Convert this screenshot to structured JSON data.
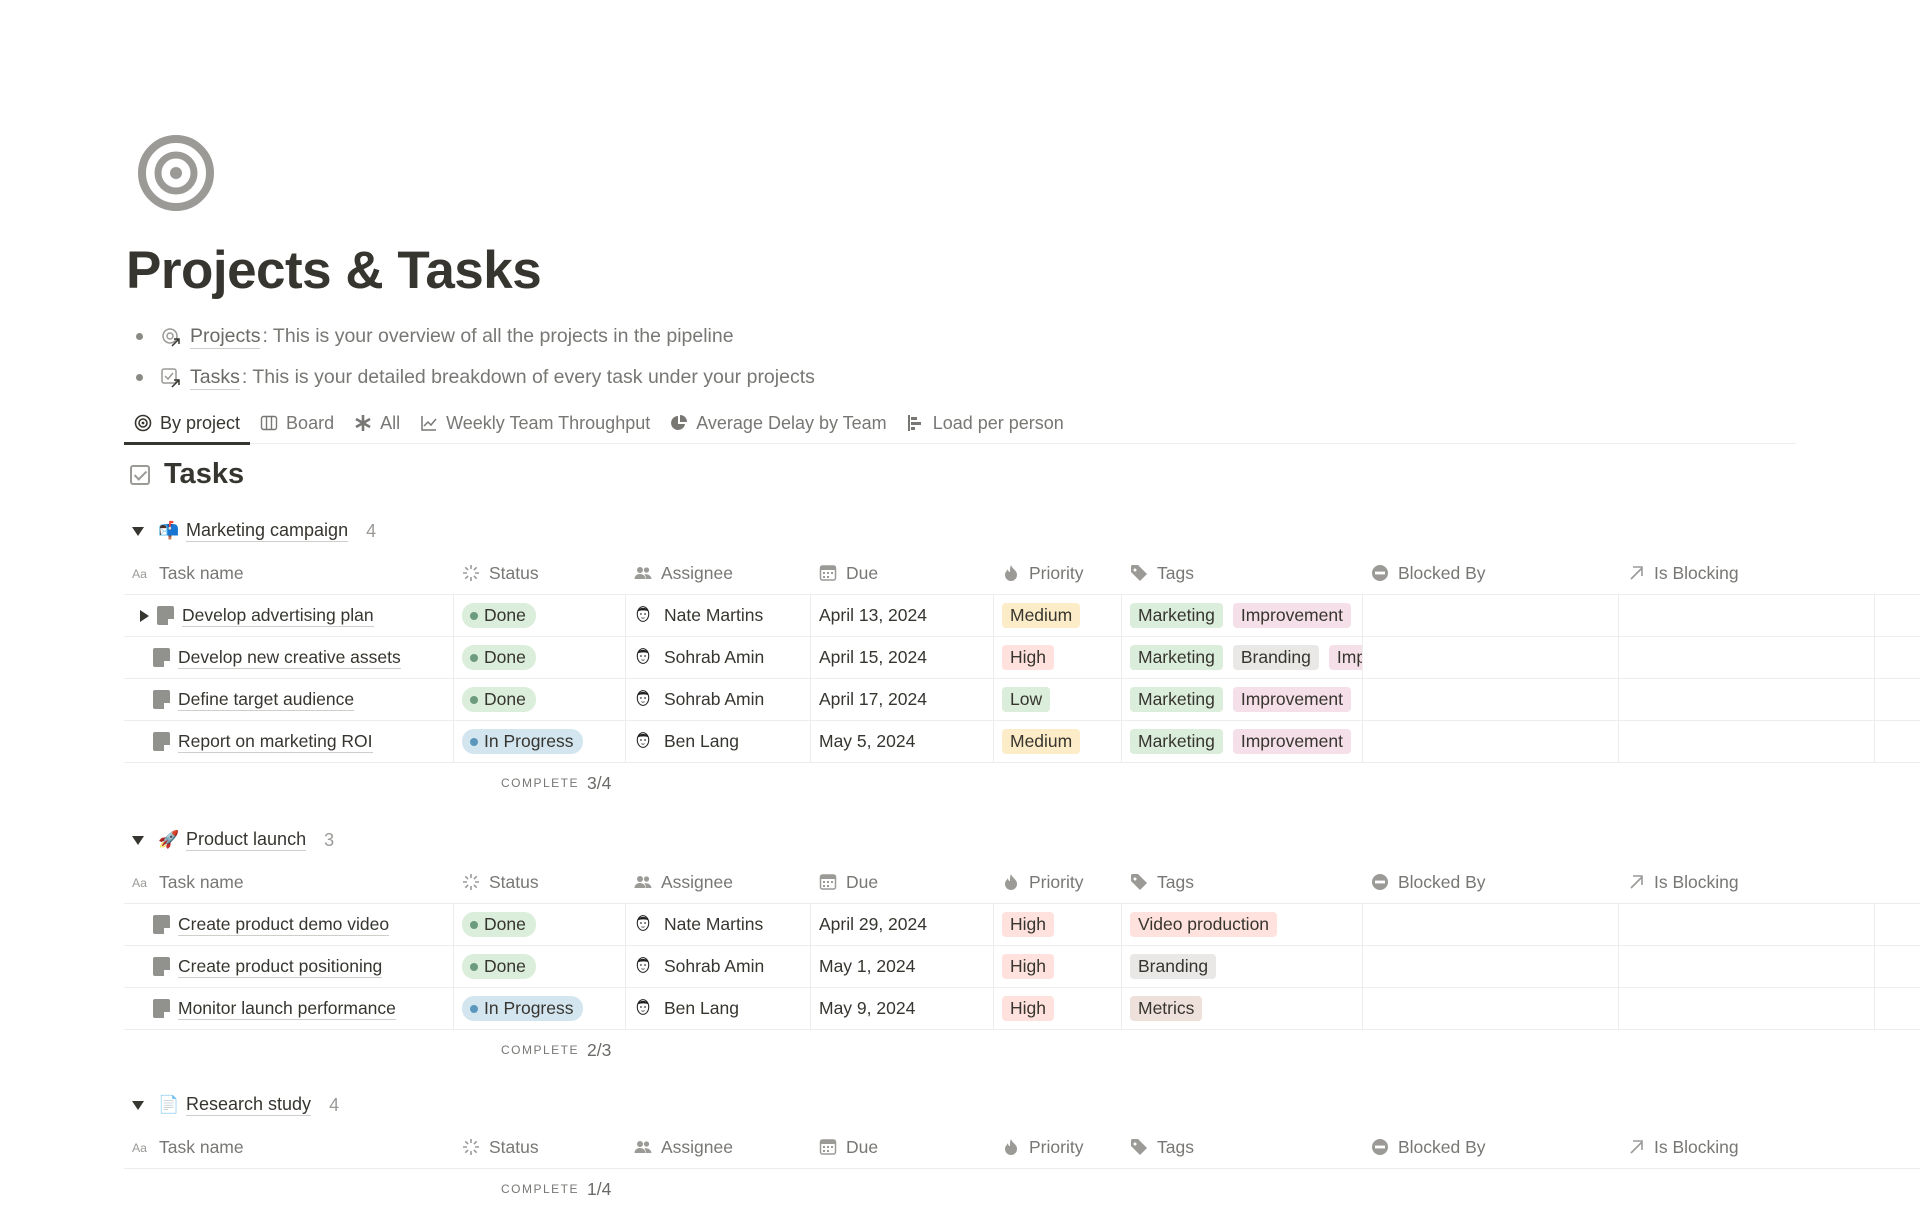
{
  "page": {
    "title": "Projects & Tasks",
    "icon": "target-icon"
  },
  "bullets": [
    {
      "icon": "projects-link-icon",
      "link": "Projects",
      "text": ": This is your overview of all the projects in the pipeline"
    },
    {
      "icon": "tasks-link-icon",
      "link": "Tasks",
      "text": ": This is your detailed breakdown of every task under your projects"
    }
  ],
  "tabs": [
    {
      "label": "By project",
      "icon": "target-icon",
      "active": true
    },
    {
      "label": "Board",
      "icon": "board-icon"
    },
    {
      "label": "All",
      "icon": "asterisk-icon"
    },
    {
      "label": "Weekly Team Throughput",
      "icon": "line-chart-icon"
    },
    {
      "label": "Average Delay by Team",
      "icon": "pie-chart-icon"
    },
    {
      "label": "Load per person",
      "icon": "bar-chart-icon"
    }
  ],
  "database": {
    "title": "Tasks"
  },
  "columns": [
    "Task name",
    "Status",
    "Assignee",
    "Due",
    "Priority",
    "Tags",
    "Blocked By",
    "Is Blocking"
  ],
  "column_icons": [
    "text-icon",
    "status-icon",
    "people-icon",
    "calendar-icon",
    "fire-icon",
    "tag-icon",
    "blocked-icon",
    "arrow-up-right-icon"
  ],
  "complete_label": "COMPLETE",
  "colors": {
    "status": {
      "Done": {
        "bg": "#dbeddb",
        "dot": "#6c9b7d"
      },
      "In Progress": {
        "bg": "#d3e5ef",
        "dot": "#5b97bd"
      }
    },
    "priority": {
      "High": "#ffe2dd",
      "Medium": "#fdecc8",
      "Low": "#dbeddb"
    },
    "tags": {
      "Marketing": "#dbeddb",
      "Improvement": "#f5e0e9",
      "Branding": "#e9e8e6",
      "Video production": "#ffe2dd",
      "Metrics": "#eee0da"
    }
  },
  "groups": [
    {
      "name": "Marketing campaign",
      "emoji": "📬",
      "count": "4",
      "complete": "3/4",
      "rows": [
        {
          "name": "Develop advertising plan",
          "expandable": true,
          "status": "Done",
          "assignee": "Nate Martins",
          "due": "April 13, 2024",
          "priority": "Medium",
          "tags": [
            "Marketing",
            "Improvement"
          ]
        },
        {
          "name": "Develop new creative assets",
          "status": "Done",
          "assignee": "Sohrab Amin",
          "due": "April 15, 2024",
          "priority": "High",
          "tags": [
            "Marketing",
            "Branding",
            "Improvement"
          ]
        },
        {
          "name": "Define target audience",
          "status": "Done",
          "assignee": "Sohrab Amin",
          "due": "April 17, 2024",
          "priority": "Low",
          "tags": [
            "Marketing",
            "Improvement"
          ]
        },
        {
          "name": "Report on marketing ROI",
          "status": "In Progress",
          "assignee": "Ben Lang",
          "due": "May 5, 2024",
          "priority": "Medium",
          "tags": [
            "Marketing",
            "Improvement"
          ]
        }
      ]
    },
    {
      "name": "Product launch",
      "emoji": "🚀",
      "count": "3",
      "complete": "2/3",
      "rows": [
        {
          "name": "Create product demo video",
          "status": "Done",
          "assignee": "Nate Martins",
          "due": "April 29, 2024",
          "priority": "High",
          "tags": [
            "Video production"
          ]
        },
        {
          "name": "Create product positioning",
          "status": "Done",
          "assignee": "Sohrab Amin",
          "due": "May 1, 2024",
          "priority": "High",
          "tags": [
            "Branding"
          ]
        },
        {
          "name": "Monitor launch performance",
          "status": "In Progress",
          "assignee": "Ben Lang",
          "due": "May 9, 2024",
          "priority": "High",
          "tags": [
            "Metrics"
          ]
        }
      ]
    },
    {
      "name": "Research study",
      "emoji": "📄",
      "count": "4",
      "complete": "1/4",
      "rows": []
    }
  ]
}
